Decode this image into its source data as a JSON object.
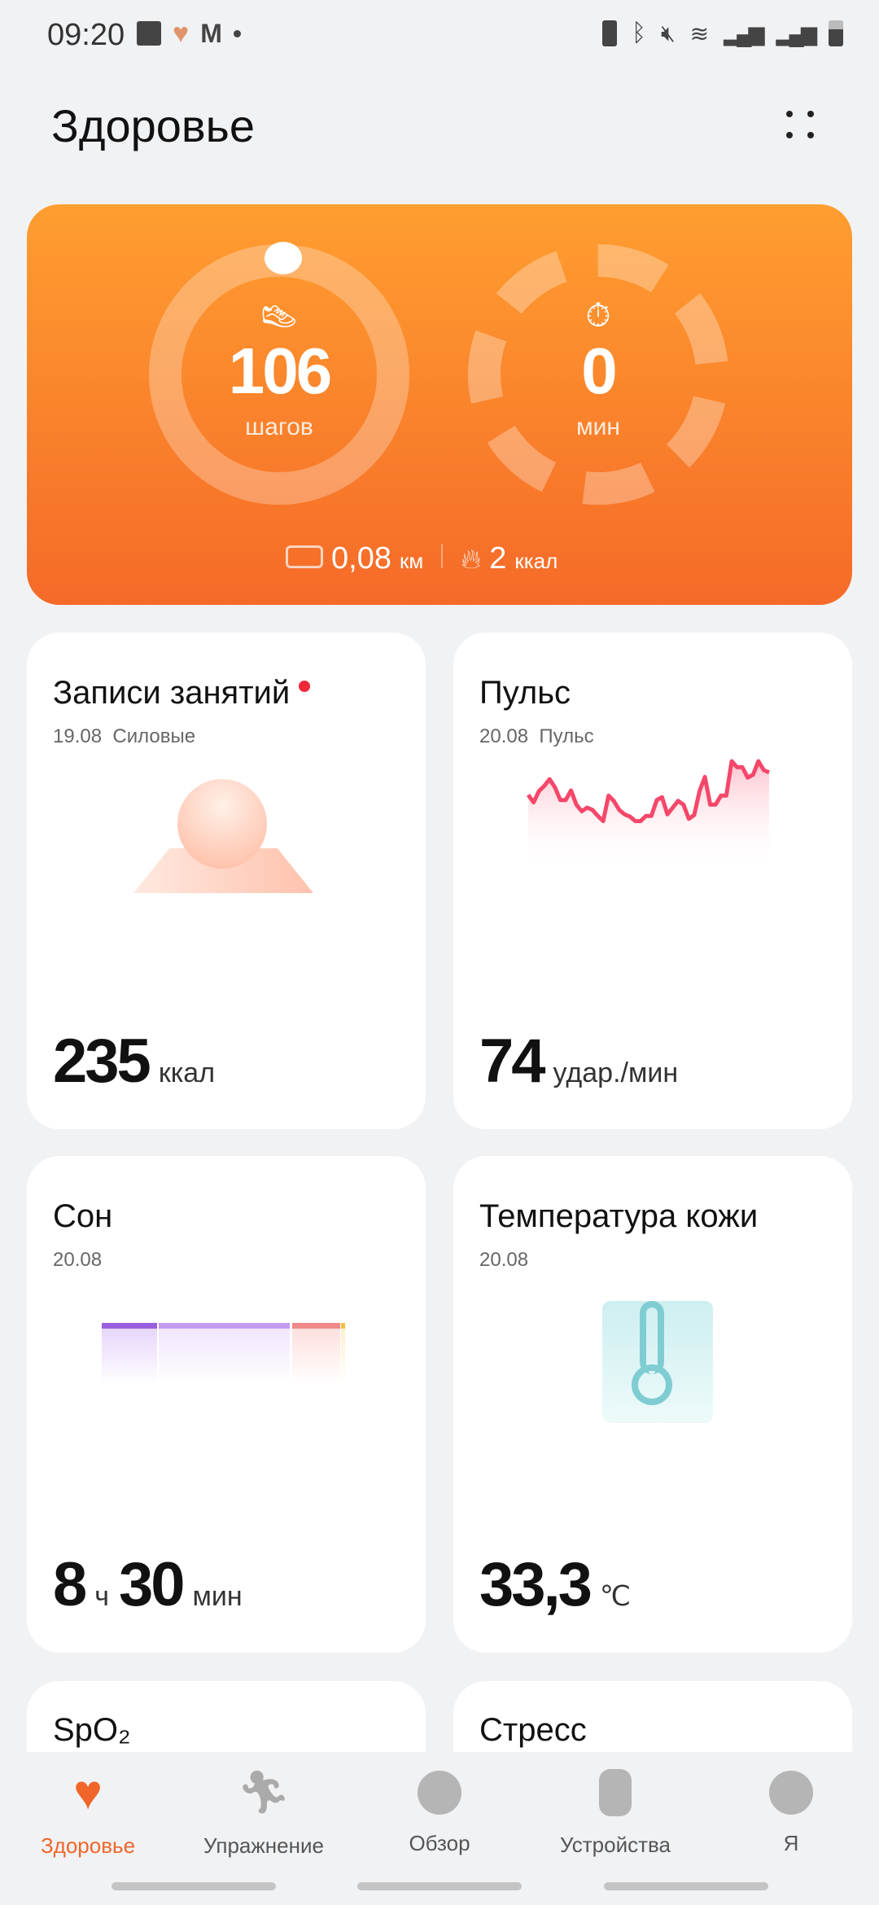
{
  "status_bar": {
    "time": "09:20",
    "icons": [
      "image-icon",
      "health-heart-icon",
      "gmail-icon",
      "dot-icon",
      "battery-saver-icon",
      "bluetooth-icon",
      "mute-icon",
      "wifi-icon",
      "signal-icon",
      "signal-roaming-icon",
      "battery-icon"
    ]
  },
  "header": {
    "title": "Здоровье",
    "menu_icon": "grid-dots-icon"
  },
  "activity": {
    "steps_value": "106",
    "steps_unit": "шагов",
    "minutes_value": "0",
    "minutes_unit": "мин",
    "distance_value": "0,08",
    "distance_unit": "км",
    "calories_value": "2",
    "calories_unit": "ккал",
    "steps_progress": 0.01,
    "accent": "#f56a28"
  },
  "cards": [
    {
      "title": "Записи занятий",
      "date": "19.08",
      "subtitle": "Силовые",
      "value": "235",
      "unit": "ккал",
      "new_badge": true
    },
    {
      "title": "Пульс",
      "date": "20.08",
      "subtitle": "Пульс",
      "value": "74",
      "unit": "удар./мин"
    },
    {
      "title": "Сон",
      "date": "20.08",
      "value_h": "8",
      "unit_h": "ч",
      "value_m": "30",
      "unit_m": "мин"
    },
    {
      "title": "Температура кожи",
      "date": "20.08",
      "value": "33,3",
      "unit": "℃"
    },
    {
      "title": "SpO₂"
    },
    {
      "title": "Стресс"
    }
  ],
  "chart_data": {
    "type": "line",
    "title": "",
    "values": [
      55,
      45,
      60,
      67,
      76,
      65,
      48,
      48,
      61,
      42,
      33,
      38,
      35,
      27,
      20,
      54,
      47,
      35,
      29,
      26,
      20,
      20,
      27,
      27,
      48,
      52,
      29,
      38,
      47,
      42,
      23,
      28,
      60,
      79,
      42,
      42,
      54,
      54,
      100,
      92,
      92,
      78,
      82,
      100,
      88,
      85
    ],
    "color": "#f5476a"
  },
  "nav": {
    "items": [
      {
        "label": "Здоровье",
        "icon": "heart-pulse-icon",
        "active": true
      },
      {
        "label": "Упражнение",
        "icon": "running-icon"
      },
      {
        "label": "Обзор",
        "icon": "globe-icon"
      },
      {
        "label": "Устройства",
        "icon": "watch-icon"
      },
      {
        "label": "Я",
        "icon": "profile-icon"
      }
    ]
  }
}
